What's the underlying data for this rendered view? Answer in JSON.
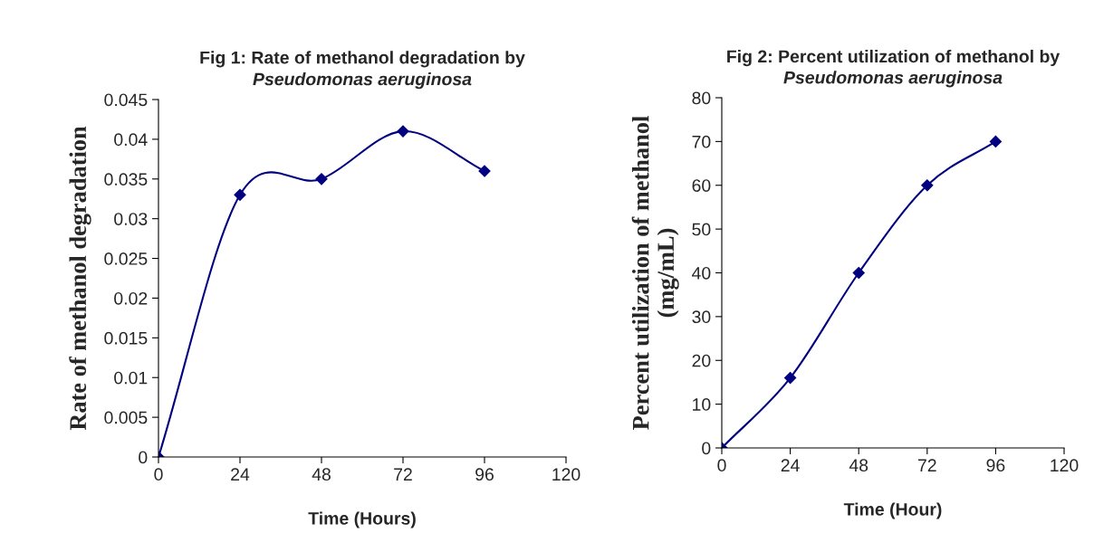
{
  "chart_data": [
    {
      "type": "line",
      "title": "Fig 1: Rate of methanol degradation by",
      "subtitle": "Pseudomonas aeruginosa",
      "xlabel": "Time (Hours)",
      "ylabel": "Rate of methanol degradation",
      "x": [
        0,
        24,
        48,
        72,
        96
      ],
      "series": [
        {
          "color": "#000080",
          "values": [
            0,
            0.033,
            0.035,
            0.041,
            0.036
          ]
        }
      ],
      "xlim": [
        0,
        120
      ],
      "xticks": [
        0,
        24,
        48,
        72,
        96,
        120
      ],
      "ylim": [
        0,
        0.045
      ],
      "yticks": [
        0,
        0.005,
        0.01,
        0.015,
        0.02,
        0.025,
        0.03,
        0.035,
        0.04,
        0.045
      ],
      "grid": false,
      "marker": "diamond",
      "line_style": "solid"
    },
    {
      "type": "line",
      "title": "Fig 2: Percent utilization of methanol by",
      "subtitle": "Pseudomonas aeruginosa",
      "xlabel": "Time (Hour)",
      "ylabel": "Percent utilization of methanol\n(mg/mL)",
      "x": [
        0,
        24,
        48,
        72,
        96
      ],
      "series": [
        {
          "color": "#000080",
          "values": [
            0,
            16,
            40,
            60,
            70
          ]
        }
      ],
      "xlim": [
        0,
        120
      ],
      "xticks": [
        0,
        24,
        48,
        72,
        96,
        120
      ],
      "ylim": [
        0,
        80
      ],
      "yticks": [
        0,
        10,
        20,
        30,
        40,
        50,
        60,
        70,
        80
      ],
      "grid": false,
      "marker": "diamond",
      "line_style": "solid"
    }
  ]
}
